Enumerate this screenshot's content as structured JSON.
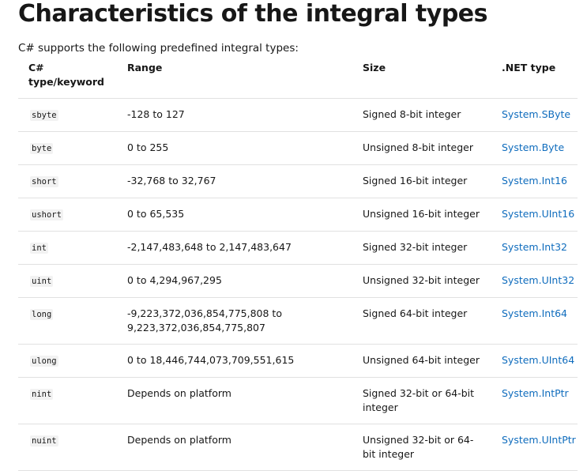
{
  "heading": "Characteristics of the integral types",
  "intro": "C# supports the following predefined integral types:",
  "table": {
    "headers": {
      "keyword": "C# type/keyword",
      "range": "Range",
      "size": "Size",
      "net_type": ".NET type"
    },
    "rows": [
      {
        "keyword": "sbyte",
        "range": "-128 to 127",
        "size": "Signed 8-bit integer",
        "net_type": "System.SByte"
      },
      {
        "keyword": "byte",
        "range": "0 to 255",
        "size": "Unsigned 8-bit integer",
        "net_type": "System.Byte"
      },
      {
        "keyword": "short",
        "range": "-32,768 to 32,767",
        "size": "Signed 16-bit integer",
        "net_type": "System.Int16"
      },
      {
        "keyword": "ushort",
        "range": "0 to 65,535",
        "size": "Unsigned 16-bit integer",
        "net_type": "System.UInt16"
      },
      {
        "keyword": "int",
        "range": "-2,147,483,648 to 2,147,483,647",
        "size": "Signed 32-bit integer",
        "net_type": "System.Int32"
      },
      {
        "keyword": "uint",
        "range": "0 to 4,294,967,295",
        "size": "Unsigned 32-bit integer",
        "net_type": "System.UInt32"
      },
      {
        "keyword": "long",
        "range": "-9,223,372,036,854,775,808 to 9,223,372,036,854,775,807",
        "size": "Signed 64-bit integer",
        "net_type": "System.Int64"
      },
      {
        "keyword": "ulong",
        "range": "0 to 18,446,744,073,709,551,615",
        "size": "Unsigned 64-bit integer",
        "net_type": "System.UInt64"
      },
      {
        "keyword": "nint",
        "range": "Depends on platform",
        "size": "Signed 32-bit or 64-bit integer",
        "net_type": "System.IntPtr"
      },
      {
        "keyword": "nuint",
        "range": "Depends on platform",
        "size": "Unsigned 32-bit or 64-bit integer",
        "net_type": "System.UIntPtr"
      }
    ]
  },
  "colors": {
    "text": "#171717",
    "link": "#0f6cbd",
    "code_bg": "#f2f2f2",
    "divider": "#e1e1e1"
  }
}
